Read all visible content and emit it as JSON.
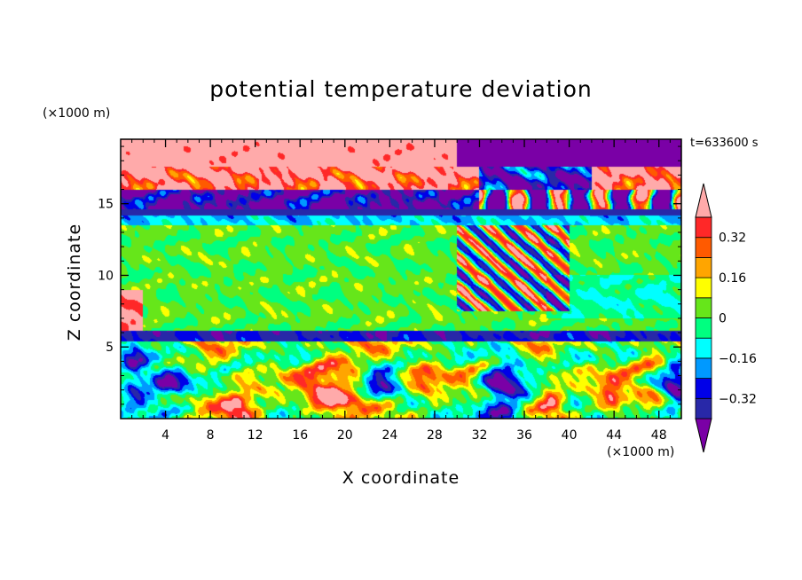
{
  "chart_data": {
    "type": "heatmap",
    "title": "potential temperature deviation",
    "xlabel": "X coordinate",
    "ylabel": "Z coordinate",
    "x_unit": "(×1000 m)",
    "z_unit": "(×1000 m)",
    "time_label": "t=633600 s",
    "xlim": [
      0,
      50
    ],
    "ylim": [
      0,
      19.5
    ],
    "xticks": [
      4,
      8,
      12,
      16,
      20,
      24,
      28,
      32,
      36,
      40,
      44,
      48
    ],
    "xtick_labels": [
      "4",
      "8",
      "12",
      "16",
      "20",
      "24",
      "28",
      "32",
      "36",
      "40",
      "44",
      "48"
    ],
    "yticks": [
      5,
      10,
      15
    ],
    "ytick_labels": [
      "5",
      "10",
      "15"
    ],
    "colorbar": {
      "levels": [
        -0.4,
        -0.32,
        -0.24,
        -0.16,
        -0.08,
        0,
        0.08,
        0.16,
        0.24,
        0.32,
        0.4
      ],
      "tick_values": [
        0.32,
        0.16,
        0,
        -0.16,
        -0.32
      ],
      "tick_labels": [
        "0.32",
        "0.16",
        "0",
        "−0.16",
        "−0.32"
      ],
      "colors_bottom_to_top": [
        "#7a00a6",
        "#2828a8",
        "#0000e8",
        "#0099ff",
        "#00ffff",
        "#00ff80",
        "#66e61a",
        "#ffff00",
        "#ffa500",
        "#ff5a00",
        "#ff2828",
        "#ffaaaa"
      ]
    }
  }
}
